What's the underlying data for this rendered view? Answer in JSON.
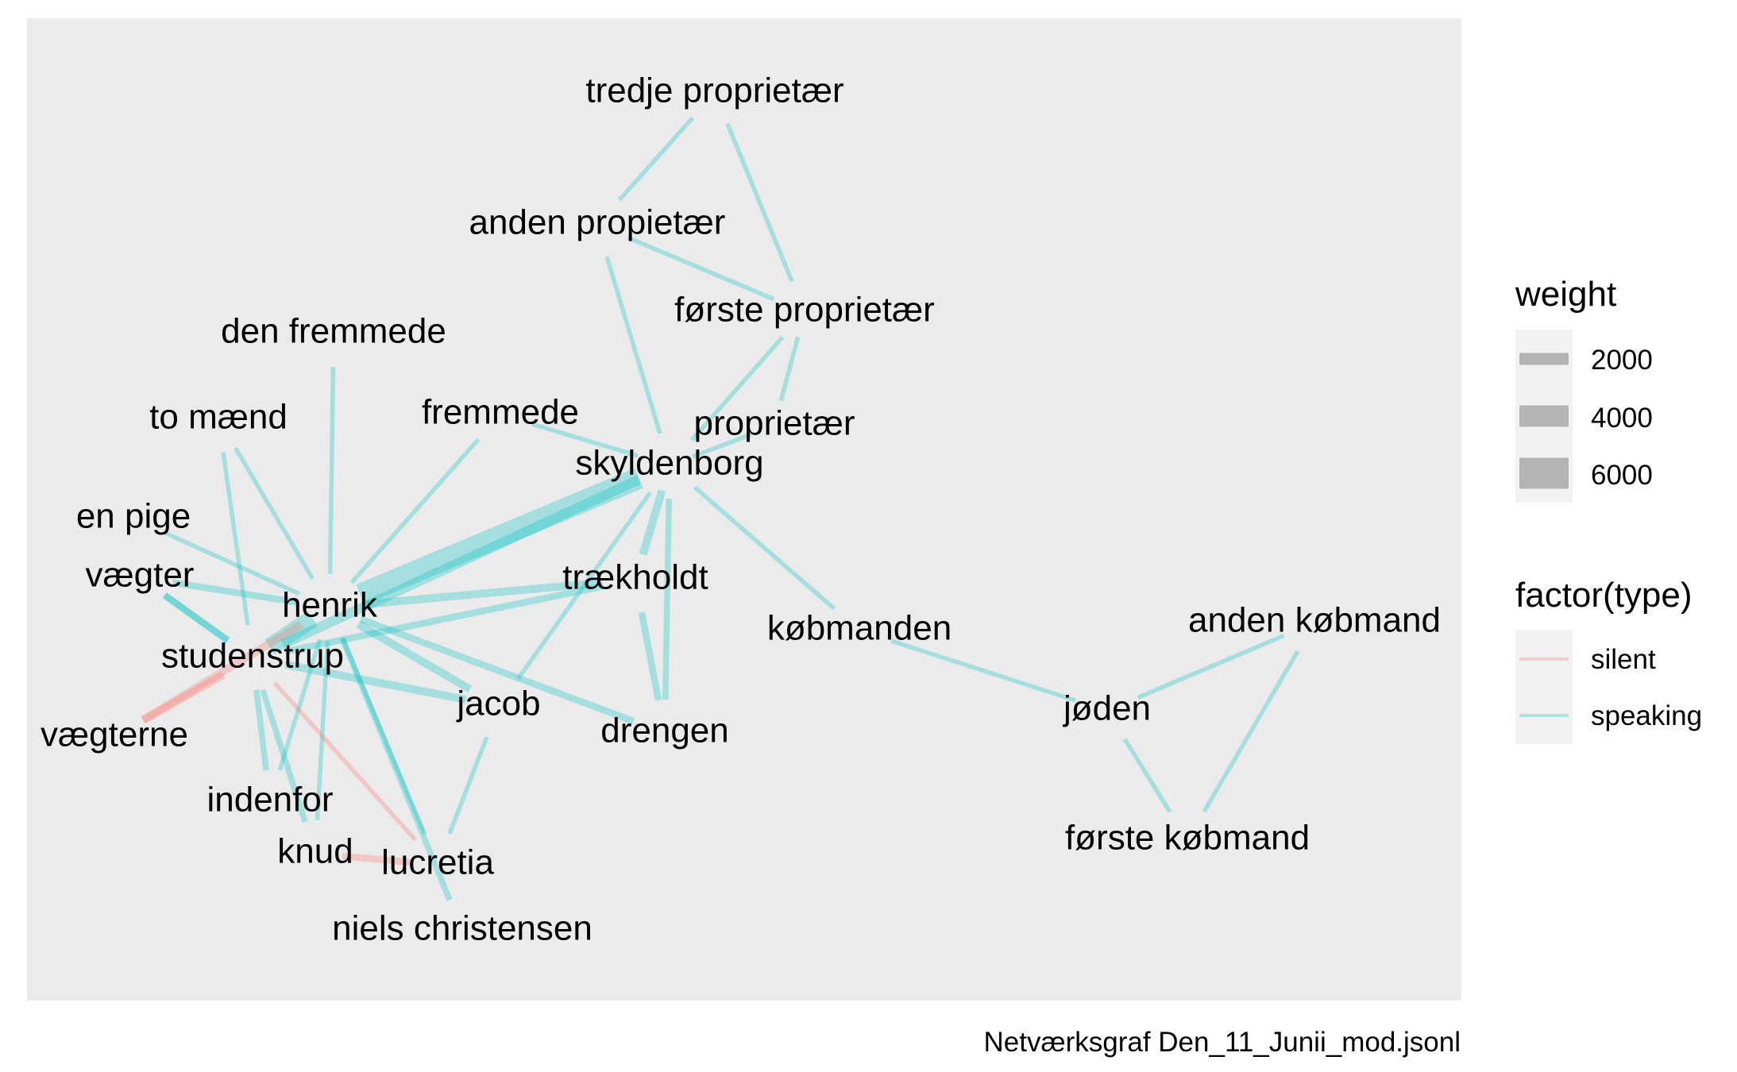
{
  "colors": {
    "panel_background": "#EBEBEB",
    "legend_key_background": "#F2F2F2",
    "silent": "#F8766D",
    "speaking": "#00BFC4",
    "weight_key": "#B3B3B3"
  },
  "caption": "Netværksgraf Den_11_Junii_mod.jsonl",
  "legend": {
    "weight": {
      "title": "weight",
      "items": [
        {
          "label": "2000",
          "value": 2000
        },
        {
          "label": "4000",
          "value": 4000
        },
        {
          "label": "6000",
          "value": 6000
        }
      ]
    },
    "type": {
      "title": "factor(type)",
      "items": [
        {
          "label": "silent",
          "color": "#F8766D"
        },
        {
          "label": "speaking",
          "color": "#00BFC4"
        }
      ]
    }
  },
  "nodes": [
    {
      "id": "tredje_proprietaer",
      "label": "tredje proprietær"
    },
    {
      "id": "anden_propietaer",
      "label": "anden propietær"
    },
    {
      "id": "forste_proprietaer",
      "label": "første proprietær"
    },
    {
      "id": "den_fremmede",
      "label": "den fremmede"
    },
    {
      "id": "fremmede",
      "label": "fremmede"
    },
    {
      "id": "proprietaer",
      "label": "proprietær"
    },
    {
      "id": "to_maend",
      "label": "to mænd"
    },
    {
      "id": "skyldenborg",
      "label": "skyldenborg"
    },
    {
      "id": "en_pige",
      "label": "en pige"
    },
    {
      "id": "vaegter",
      "label": "vægter"
    },
    {
      "id": "traekholdt",
      "label": "trækholdt"
    },
    {
      "id": "henrik",
      "label": "henrik"
    },
    {
      "id": "kobmanden",
      "label": "købmanden"
    },
    {
      "id": "anden_kobmand",
      "label": "anden købmand"
    },
    {
      "id": "studenstrup",
      "label": "studenstrup"
    },
    {
      "id": "jacob",
      "label": "jacob"
    },
    {
      "id": "joden",
      "label": "jøden"
    },
    {
      "id": "drengen",
      "label": "drengen"
    },
    {
      "id": "vaegterne",
      "label": "vægterne"
    },
    {
      "id": "indenfor",
      "label": "indenfor"
    },
    {
      "id": "knud",
      "label": "knud"
    },
    {
      "id": "lucretia",
      "label": "lucretia"
    },
    {
      "id": "forste_kobmand",
      "label": "første købmand"
    },
    {
      "id": "niels_christensen",
      "label": "niels christensen"
    }
  ],
  "edges": [
    {
      "source": "tredje_proprietaer",
      "target": "anden_propietaer",
      "type": "speaking",
      "weight": 600
    },
    {
      "source": "tredje_proprietaer",
      "target": "forste_proprietaer",
      "type": "speaking",
      "weight": 600
    },
    {
      "source": "anden_propietaer",
      "target": "skyldenborg",
      "type": "speaking",
      "weight": 600
    },
    {
      "source": "anden_propietaer",
      "target": "forste_proprietaer",
      "type": "speaking",
      "weight": 600
    },
    {
      "source": "forste_proprietaer",
      "target": "skyldenborg",
      "type": "speaking",
      "weight": 600
    },
    {
      "source": "forste_proprietaer",
      "target": "proprietaer",
      "type": "speaking",
      "weight": 600
    },
    {
      "source": "proprietaer",
      "target": "skyldenborg",
      "type": "speaking",
      "weight": 600
    },
    {
      "source": "fremmede",
      "target": "skyldenborg",
      "type": "speaking",
      "weight": 600
    },
    {
      "source": "fremmede",
      "target": "henrik",
      "type": "speaking",
      "weight": 600
    },
    {
      "source": "den_fremmede",
      "target": "henrik",
      "type": "speaking",
      "weight": 600
    },
    {
      "source": "to_maend",
      "target": "henrik",
      "type": "speaking",
      "weight": 600
    },
    {
      "source": "to_maend",
      "target": "studenstrup",
      "type": "speaking",
      "weight": 600
    },
    {
      "source": "en_pige",
      "target": "henrik",
      "type": "speaking",
      "weight": 600
    },
    {
      "source": "vaegter",
      "target": "henrik",
      "type": "speaking",
      "weight": 1200
    },
    {
      "source": "vaegter",
      "target": "studenstrup",
      "type": "speaking",
      "weight": 1200
    },
    {
      "source": "skyldenborg",
      "target": "henrik",
      "type": "speaking",
      "weight": 5000
    },
    {
      "source": "skyldenborg",
      "target": "studenstrup",
      "type": "speaking",
      "weight": 2000
    },
    {
      "source": "skyldenborg",
      "target": "traekholdt",
      "type": "speaking",
      "weight": 1500
    },
    {
      "source": "skyldenborg",
      "target": "drengen",
      "type": "speaking",
      "weight": 1000
    },
    {
      "source": "skyldenborg",
      "target": "kobmanden",
      "type": "speaking",
      "weight": 600
    },
    {
      "source": "skyldenborg",
      "target": "jacob",
      "type": "speaking",
      "weight": 600
    },
    {
      "source": "traekholdt",
      "target": "henrik",
      "type": "speaking",
      "weight": 1500
    },
    {
      "source": "traekholdt",
      "target": "drengen",
      "type": "speaking",
      "weight": 1200
    },
    {
      "source": "traekholdt",
      "target": "studenstrup",
      "type": "speaking",
      "weight": 1200
    },
    {
      "source": "henrik",
      "target": "studenstrup",
      "type": "speaking",
      "weight": 4000
    },
    {
      "source": "henrik",
      "target": "jacob",
      "type": "speaking",
      "weight": 1500
    },
    {
      "source": "henrik",
      "target": "drengen",
      "type": "speaking",
      "weight": 1200
    },
    {
      "source": "henrik",
      "target": "lucretia",
      "type": "speaking",
      "weight": 600
    },
    {
      "source": "henrik",
      "target": "niels_christensen",
      "type": "speaking",
      "weight": 1000
    },
    {
      "source": "henrik",
      "target": "indenfor",
      "type": "speaking",
      "weight": 600
    },
    {
      "source": "henrik",
      "target": "knud",
      "type": "speaking",
      "weight": 600
    },
    {
      "source": "henrik",
      "target": "vaegterne",
      "type": "silent",
      "weight": 1500
    },
    {
      "source": "studenstrup",
      "target": "vaegterne",
      "type": "silent",
      "weight": 1500
    },
    {
      "source": "studenstrup",
      "target": "jacob",
      "type": "speaking",
      "weight": 1500
    },
    {
      "source": "studenstrup",
      "target": "indenfor",
      "type": "speaking",
      "weight": 1000
    },
    {
      "source": "studenstrup",
      "target": "knud",
      "type": "speaking",
      "weight": 1000
    },
    {
      "source": "studenstrup",
      "target": "lucretia",
      "type": "silent",
      "weight": 600
    },
    {
      "source": "studenstrup",
      "target": "vaegter",
      "type": "speaking",
      "weight": 1200
    },
    {
      "source": "knud",
      "target": "lucretia",
      "type": "silent",
      "weight": 1200
    },
    {
      "source": "jacob",
      "target": "lucretia",
      "type": "speaking",
      "weight": 600
    },
    {
      "source": "kobmanden",
      "target": "joden",
      "type": "speaking",
      "weight": 600
    },
    {
      "source": "joden",
      "target": "anden_kobmand",
      "type": "speaking",
      "weight": 600
    },
    {
      "source": "joden",
      "target": "forste_kobmand",
      "type": "speaking",
      "weight": 600
    },
    {
      "source": "anden_kobmand",
      "target": "forste_kobmand",
      "type": "speaking",
      "weight": 600
    }
  ]
}
